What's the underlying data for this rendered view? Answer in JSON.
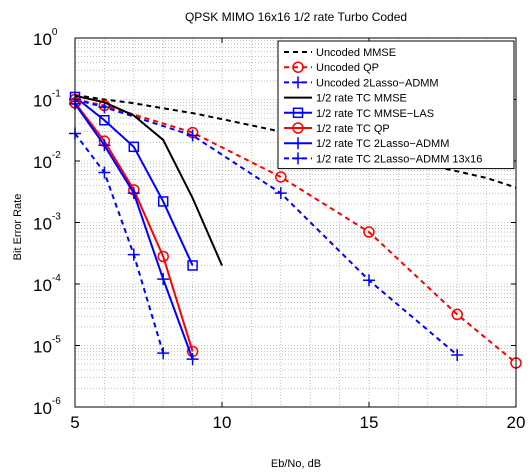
{
  "chart_data": {
    "type": "line",
    "title": "QPSK MIMO 16x16 1/2 rate Turbo Coded",
    "xlabel": "Eb/No, dB",
    "ylabel": "Bit Error Rate",
    "xlim": [
      5,
      20
    ],
    "ylim": [
      1e-06,
      1
    ],
    "yscale": "log",
    "grid": true,
    "legend_position": "top-right",
    "x_ticks": [
      "5",
      "10",
      "15",
      "20"
    ],
    "y_ticks": [
      {
        "base": "10",
        "exp": "0"
      },
      {
        "base": "10",
        "exp": "-1"
      },
      {
        "base": "10",
        "exp": "-2"
      },
      {
        "base": "10",
        "exp": "-3"
      },
      {
        "base": "10",
        "exp": "-4"
      },
      {
        "base": "10",
        "exp": "-5"
      },
      {
        "base": "10",
        "exp": "-6"
      }
    ],
    "series": [
      {
        "name": "Uncoded MMSE",
        "color": "#000000",
        "dash": "5,4",
        "marker": "none",
        "x": [
          5,
          6,
          7,
          8,
          9,
          10,
          11,
          12,
          13,
          14,
          15,
          16,
          17,
          18,
          19,
          20
        ],
        "y": [
          0.118,
          0.1,
          0.087,
          0.072,
          0.06,
          0.048,
          0.038,
          0.03,
          0.023,
          0.018,
          0.014,
          0.011,
          0.0086,
          0.0068,
          0.0053,
          0.0037
        ]
      },
      {
        "name": "Uncoded QP",
        "color": "#ff0000",
        "dash": "5,4",
        "marker": "circle",
        "x": [
          5,
          6,
          9,
          12,
          15,
          18,
          20
        ],
        "y": [
          0.1,
          0.08,
          0.029,
          0.0055,
          0.0007,
          3.2e-05,
          5.2e-06
        ]
      },
      {
        "name": "Uncoded 2Lasso−ADMM",
        "color": "#0000ff",
        "dash": "5,4",
        "marker": "plus",
        "x": [
          5,
          6,
          9,
          12,
          15,
          18
        ],
        "y": [
          0.1,
          0.075,
          0.026,
          0.003,
          0.000115,
          7e-06
        ]
      },
      {
        "name": "1/2 rate TC MMSE",
        "color": "#000000",
        "dash": "",
        "marker": "none",
        "x": [
          5,
          6,
          7,
          8,
          9,
          10
        ],
        "y": [
          0.115,
          0.09,
          0.055,
          0.022,
          0.0025,
          0.0002
        ]
      },
      {
        "name": "1/2 rate TC MMSE−LAS",
        "color": "#0000ff",
        "dash": "",
        "marker": "square",
        "x": [
          5,
          6,
          7,
          8,
          9
        ],
        "y": [
          0.11,
          0.046,
          0.017,
          0.0022,
          0.0002
        ]
      },
      {
        "name": "1/2 rate TC QP",
        "color": "#ff0000",
        "dash": "",
        "marker": "circle",
        "x": [
          5,
          6,
          7,
          8,
          9
        ],
        "y": [
          0.088,
          0.021,
          0.0034,
          0.00028,
          8e-06
        ]
      },
      {
        "name": "1/2 rate TC 2Lasso−ADMM",
        "color": "#0000ff",
        "dash": "",
        "marker": "plus",
        "x": [
          5,
          6,
          7,
          8,
          9
        ],
        "y": [
          0.085,
          0.018,
          0.003,
          0.00012,
          6e-06
        ]
      },
      {
        "name": "1/2 rate TC 2Lasso−ADMM 13x16",
        "color": "#0000ff",
        "dash": "5,4",
        "marker": "plus",
        "x": [
          5,
          6,
          7,
          8
        ],
        "y": [
          0.028,
          0.0065,
          0.0003,
          7.5e-06
        ]
      }
    ]
  }
}
